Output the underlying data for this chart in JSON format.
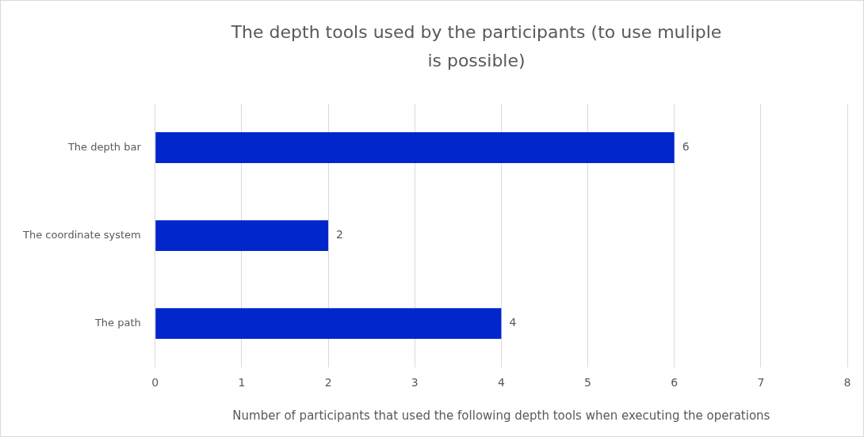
{
  "chart_data": {
    "type": "bar",
    "orientation": "horizontal",
    "title": "The depth tools used by the participants (to use muliple is possible)",
    "xlabel": "Number of participants that used the following depth tools when executing the operations",
    "categories": [
      "The depth bar",
      "The coordinate system",
      "The path"
    ],
    "values": [
      6,
      2,
      4
    ],
    "color": "#0026cc",
    "xlim": [
      0,
      8
    ],
    "xticks": [
      0,
      1,
      2,
      3,
      4,
      5,
      6,
      7,
      8
    ],
    "grid": "x",
    "data_labels": true
  }
}
